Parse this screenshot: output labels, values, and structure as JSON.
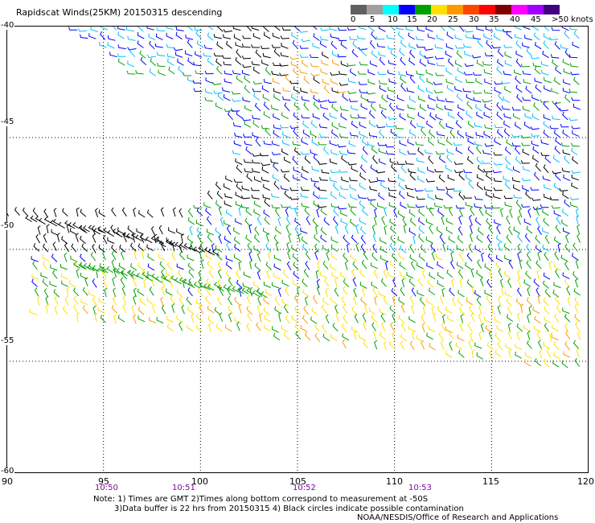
{
  "title": "Rapidscat Winds(25KM) 20150315 descending",
  "legend": {
    "colors": [
      "#606060",
      "#a0a0a0",
      "#00ffff",
      "#0000ff",
      "#00a000",
      "#ffe000",
      "#ff9900",
      "#ff4400",
      "#ff0000",
      "#800000",
      "#ff00ff",
      "#a000ff",
      "#400080"
    ],
    "labels": [
      "0",
      "5",
      "10",
      "15",
      "20",
      "25",
      "30",
      "35",
      "40",
      "45",
      ">50 knots"
    ]
  },
  "lat_labels": [
    "-40",
    "-45",
    "-50",
    "-55",
    "-60"
  ],
  "lon_labels": [
    "90",
    "95",
    "100",
    "105",
    "110",
    "115",
    "120"
  ],
  "time_labels": [
    "10:50",
    "10:51",
    "10:52",
    "10:53"
  ],
  "notes": {
    "line1": "Note: 1) Times are GMT 2)Times along bottom correspond to measurement at -50S",
    "line2": "3)Data buffer is 22 hrs from 20150315 4) Black circles indicate possible contamination",
    "line3": "NOAA/NESDIS/Office of Research and Applications"
  }
}
